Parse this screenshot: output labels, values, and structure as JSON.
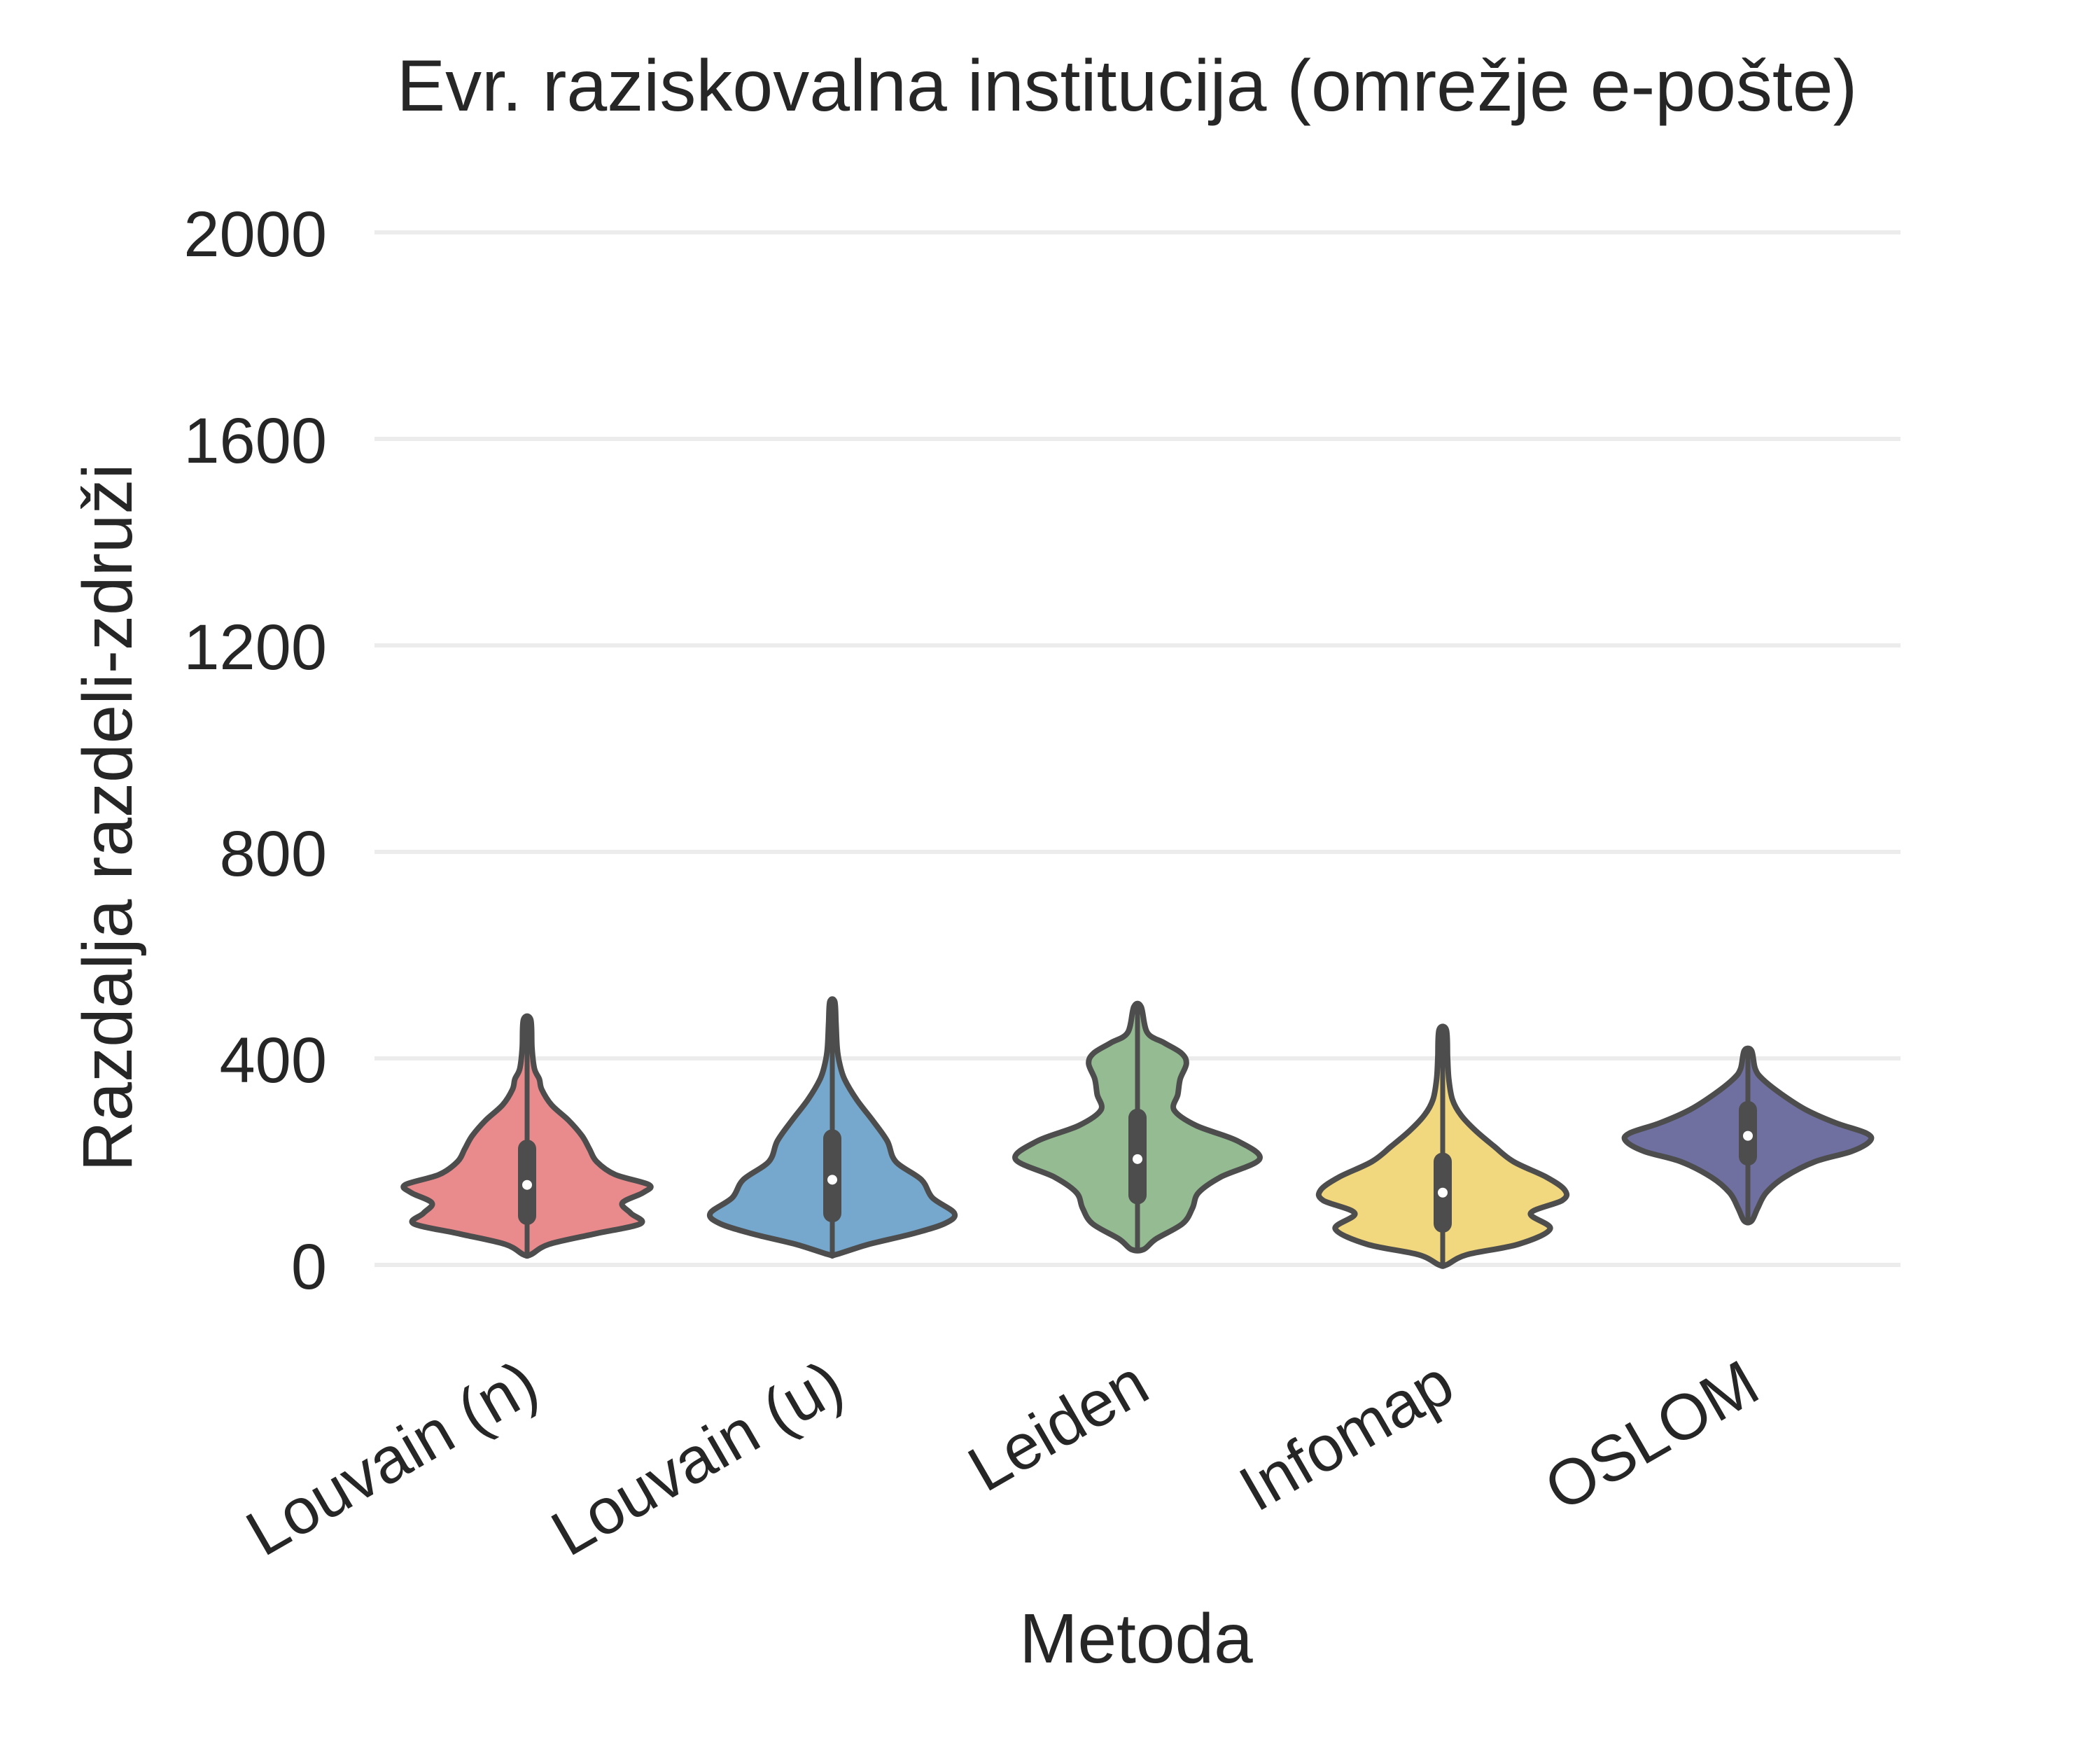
{
  "chart_data": {
    "type": "violin",
    "title": "Evr. raziskovalna institucija  (omrežje e-pošte)",
    "xlabel": "Metoda",
    "ylabel": "Razdalja razdeli-združi",
    "ylim": [
      -150,
      2150
    ],
    "yticks": [
      0,
      400,
      800,
      1200,
      1600,
      2000
    ],
    "categories": [
      "Louvain (n)",
      "Louvain (u)",
      "Leiden",
      "Infomap",
      "OSLOM"
    ],
    "grid": "horizontal",
    "legend": "none",
    "series": [
      {
        "color": "#e98a8d",
        "min": 20,
        "max": 475,
        "q1": 95,
        "median": 155,
        "q3": 225,
        "density": [
          [
            20,
            0.03
          ],
          [
            40,
            0.18
          ],
          [
            60,
            0.55
          ],
          [
            80,
            0.93
          ],
          [
            100,
            0.85
          ],
          [
            120,
            0.78
          ],
          [
            140,
            0.95
          ],
          [
            155,
            1.0
          ],
          [
            175,
            0.72
          ],
          [
            200,
            0.57
          ],
          [
            225,
            0.51
          ],
          [
            250,
            0.45
          ],
          [
            280,
            0.34
          ],
          [
            310,
            0.2
          ],
          [
            340,
            0.12
          ],
          [
            360,
            0.1
          ],
          [
            380,
            0.06
          ],
          [
            420,
            0.04
          ],
          [
            475,
            0.03
          ]
        ]
      },
      {
        "color": "#75a8cc",
        "min": 20,
        "max": 510,
        "q1": 100,
        "median": 165,
        "q3": 245,
        "density": [
          [
            20,
            0.03
          ],
          [
            40,
            0.3
          ],
          [
            60,
            0.65
          ],
          [
            80,
            0.92
          ],
          [
            100,
            1.0
          ],
          [
            130,
            0.82
          ],
          [
            165,
            0.73
          ],
          [
            200,
            0.52
          ],
          [
            240,
            0.45
          ],
          [
            280,
            0.33
          ],
          [
            320,
            0.2
          ],
          [
            360,
            0.1
          ],
          [
            390,
            0.06
          ],
          [
            420,
            0.04
          ],
          [
            470,
            0.03
          ],
          [
            510,
            0.02
          ]
        ]
      },
      {
        "color": "#95bb93",
        "min": 30,
        "max": 500,
        "q1": 135,
        "median": 205,
        "q3": 285,
        "density": [
          [
            30,
            0.05
          ],
          [
            50,
            0.15
          ],
          [
            80,
            0.37
          ],
          [
            110,
            0.45
          ],
          [
            140,
            0.5
          ],
          [
            170,
            0.68
          ],
          [
            205,
            1.0
          ],
          [
            240,
            0.82
          ],
          [
            270,
            0.48
          ],
          [
            300,
            0.3
          ],
          [
            330,
            0.33
          ],
          [
            360,
            0.35
          ],
          [
            390,
            0.4
          ],
          [
            410,
            0.36
          ],
          [
            430,
            0.22
          ],
          [
            450,
            0.08
          ],
          [
            500,
            0.03
          ]
        ]
      },
      {
        "color": "#f1d77d",
        "min": 0,
        "max": 455,
        "q1": 80,
        "median": 140,
        "q3": 200,
        "density": [
          [
            0,
            0.03
          ],
          [
            20,
            0.2
          ],
          [
            40,
            0.62
          ],
          [
            70,
            0.88
          ],
          [
            100,
            0.72
          ],
          [
            125,
            0.98
          ],
          [
            145,
            1.0
          ],
          [
            170,
            0.85
          ],
          [
            200,
            0.58
          ],
          [
            230,
            0.42
          ],
          [
            260,
            0.27
          ],
          [
            290,
            0.15
          ],
          [
            320,
            0.08
          ],
          [
            360,
            0.05
          ],
          [
            400,
            0.04
          ],
          [
            455,
            0.03
          ]
        ]
      },
      {
        "color": "#6f70a0",
        "min": 85,
        "max": 415,
        "q1": 210,
        "median": 250,
        "q3": 300,
        "density": [
          [
            85,
            0.03
          ],
          [
            110,
            0.08
          ],
          [
            140,
            0.15
          ],
          [
            170,
            0.3
          ],
          [
            200,
            0.55
          ],
          [
            220,
            0.85
          ],
          [
            240,
            1.0
          ],
          [
            255,
            0.97
          ],
          [
            275,
            0.72
          ],
          [
            300,
            0.48
          ],
          [
            330,
            0.28
          ],
          [
            360,
            0.12
          ],
          [
            380,
            0.06
          ],
          [
            415,
            0.03
          ]
        ]
      }
    ]
  }
}
